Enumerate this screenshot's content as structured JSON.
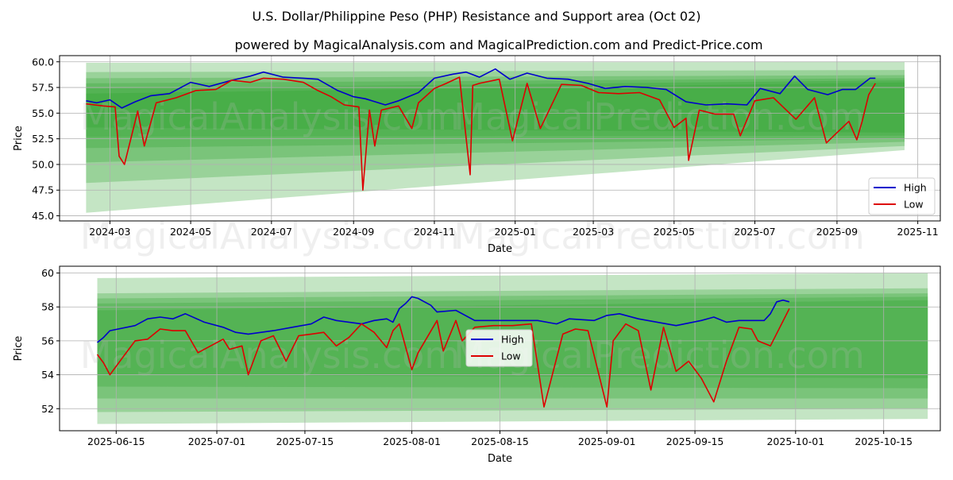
{
  "title": "U.S. Dollar/Philippine Peso (PHP) Resistance and Support area (Oct 02)",
  "subtitle": "powered by MagicalAnalysis.com and MagicalPrediction.com and Predict-Price.com",
  "watermarks": [
    "MagicalAnalysis.com",
    "MagicalPrediction.com"
  ],
  "colors": {
    "high": "#0000cc",
    "low": "#dd0000",
    "band": "#2ca02c"
  },
  "chart_data": [
    {
      "type": "line",
      "panel": "top",
      "xlabel": "Date",
      "ylabel": "Price",
      "xlim": [
        "2024-01-23",
        "2025-11-18"
      ],
      "ylim": [
        44.5,
        60.6
      ],
      "xticks": [
        "2024-03-01",
        "2024-05-01",
        "2024-07-01",
        "2024-09-01",
        "2024-11-01",
        "2025-01-01",
        "2025-03-01",
        "2025-05-01",
        "2025-07-01",
        "2025-09-01",
        "2025-11-01"
      ],
      "xtick_labels": [
        "2024-03",
        "2024-05",
        "2024-07",
        "2024-09",
        "2024-11",
        "2025-01",
        "2025-03",
        "2025-05",
        "2025-07",
        "2025-09",
        "2025-11"
      ],
      "yticks": [
        45.0,
        47.5,
        50.0,
        52.5,
        55.0,
        57.5,
        60.0
      ],
      "ytick_labels": [
        "45.0",
        "47.5",
        "50.0",
        "52.5",
        "55.0",
        "57.5",
        "60.0"
      ],
      "legend": {
        "position": "lower-right",
        "entries": [
          "High",
          "Low"
        ]
      },
      "bands": {
        "x_start": "2024-02-12",
        "x_end": "2025-10-22",
        "upper_start": [
          59.9,
          59.0,
          58.4,
          57.9,
          57.4,
          56.9
        ],
        "upper_end": [
          60.0,
          59.2,
          58.7,
          58.4,
          58.2,
          58.0
        ],
        "lower_start": [
          45.3,
          48.2,
          50.2,
          51.6,
          52.7,
          53.6
        ],
        "lower_end": [
          51.4,
          51.8,
          52.2,
          52.5,
          52.8,
          53.1
        ]
      },
      "series": [
        {
          "name": "High",
          "x": [
            "2024-02-12",
            "2024-02-20",
            "2024-03-01",
            "2024-03-10",
            "2024-03-20",
            "2024-04-01",
            "2024-04-15",
            "2024-05-01",
            "2024-05-15",
            "2024-06-01",
            "2024-06-15",
            "2024-06-25",
            "2024-07-10",
            "2024-07-25",
            "2024-08-05",
            "2024-08-20",
            "2024-09-01",
            "2024-09-10",
            "2024-09-25",
            "2024-10-05",
            "2024-10-20",
            "2024-11-01",
            "2024-11-15",
            "2024-11-25",
            "2024-12-05",
            "2024-12-17",
            "2024-12-28",
            "2025-01-10",
            "2025-01-25",
            "2025-02-10",
            "2025-02-25",
            "2025-03-10",
            "2025-03-25",
            "2025-04-10",
            "2025-04-25",
            "2025-05-10",
            "2025-05-25",
            "2025-06-10",
            "2025-06-25",
            "2025-07-05",
            "2025-07-20",
            "2025-07-31",
            "2025-08-10",
            "2025-08-25",
            "2025-09-05",
            "2025-09-15",
            "2025-09-26",
            "2025-09-30"
          ],
          "values": [
            56.2,
            56.0,
            56.3,
            55.5,
            56.1,
            56.7,
            56.9,
            58.0,
            57.6,
            58.2,
            58.6,
            59.0,
            58.5,
            58.4,
            58.3,
            57.2,
            56.6,
            56.4,
            55.8,
            56.2,
            57.0,
            58.4,
            58.8,
            59.0,
            58.5,
            59.3,
            58.3,
            58.9,
            58.4,
            58.3,
            57.9,
            57.4,
            57.6,
            57.5,
            57.3,
            56.1,
            55.8,
            55.9,
            55.8,
            57.4,
            56.9,
            58.6,
            57.3,
            56.8,
            57.3,
            57.3,
            58.4,
            58.4
          ]
        },
        {
          "name": "Low",
          "x": [
            "2024-02-12",
            "2024-02-25",
            "2024-03-05",
            "2024-03-08",
            "2024-03-12",
            "2024-03-22",
            "2024-03-27",
            "2024-04-05",
            "2024-04-20",
            "2024-05-05",
            "2024-05-20",
            "2024-06-01",
            "2024-06-15",
            "2024-06-25",
            "2024-07-10",
            "2024-07-25",
            "2024-08-05",
            "2024-08-15",
            "2024-08-25",
            "2024-09-05",
            "2024-09-08",
            "2024-09-13",
            "2024-09-17",
            "2024-09-22",
            "2024-10-05",
            "2024-10-15",
            "2024-10-20",
            "2024-11-01",
            "2024-11-10",
            "2024-11-20",
            "2024-11-28",
            "2024-11-30",
            "2024-12-05",
            "2024-12-20",
            "2024-12-30",
            "2025-01-10",
            "2025-01-20",
            "2025-02-05",
            "2025-02-20",
            "2025-03-05",
            "2025-03-20",
            "2025-04-05",
            "2025-04-20",
            "2025-05-01",
            "2025-05-10",
            "2025-05-12",
            "2025-05-20",
            "2025-06-01",
            "2025-06-15",
            "2025-06-20",
            "2025-07-01",
            "2025-07-15",
            "2025-08-01",
            "2025-08-15",
            "2025-08-24",
            "2025-09-01",
            "2025-09-10",
            "2025-09-16",
            "2025-09-20",
            "2025-09-25",
            "2025-09-30"
          ],
          "values": [
            55.9,
            55.7,
            55.6,
            50.8,
            50.0,
            55.2,
            51.8,
            56.0,
            56.5,
            57.2,
            57.3,
            58.2,
            58.0,
            58.4,
            58.3,
            58.0,
            57.2,
            56.6,
            55.8,
            55.6,
            47.5,
            55.3,
            51.8,
            55.3,
            55.7,
            53.5,
            56.0,
            57.4,
            57.9,
            58.5,
            49.0,
            57.7,
            57.9,
            58.3,
            52.3,
            57.9,
            53.5,
            57.8,
            57.7,
            57.0,
            56.9,
            57.0,
            56.3,
            53.6,
            54.5,
            50.4,
            55.3,
            54.9,
            54.9,
            52.8,
            56.2,
            56.5,
            54.4,
            56.5,
            52.1,
            53.1,
            54.2,
            52.4,
            54.2,
            56.8,
            57.9
          ]
        }
      ]
    },
    {
      "type": "line",
      "panel": "bottom",
      "xlabel": "Date",
      "ylabel": "Price",
      "xlim": [
        "2025-06-06",
        "2025-10-24"
      ],
      "ylim": [
        50.7,
        60.4
      ],
      "xticks": [
        "2025-06-15",
        "2025-07-01",
        "2025-07-15",
        "2025-08-01",
        "2025-08-15",
        "2025-09-01",
        "2025-09-15",
        "2025-10-01",
        "2025-10-15"
      ],
      "xtick_labels": [
        "2025-06-15",
        "2025-07-01",
        "2025-07-15",
        "2025-08-01",
        "2025-08-15",
        "2025-09-01",
        "2025-09-15",
        "2025-10-01",
        "2025-10-15"
      ],
      "yticks": [
        52,
        54,
        56,
        58,
        60
      ],
      "ytick_labels": [
        "52",
        "54",
        "56",
        "58",
        "60"
      ],
      "legend": {
        "position": "center",
        "entries": [
          "High",
          "Low"
        ]
      },
      "bands": {
        "x_start": "2025-06-12",
        "x_end": "2025-10-22",
        "upper_start": [
          59.7,
          58.8,
          58.5,
          58.2,
          57.8
        ],
        "upper_end": [
          60.0,
          59.1,
          58.8,
          58.6,
          58.4
        ],
        "lower_start": [
          51.1,
          51.8,
          52.6,
          53.3,
          54.0
        ],
        "lower_end": [
          51.4,
          52.0,
          52.6,
          53.2,
          53.8
        ]
      },
      "series": [
        {
          "name": "High",
          "x": [
            "2025-06-12",
            "2025-06-13",
            "2025-06-14",
            "2025-06-18",
            "2025-06-20",
            "2025-06-22",
            "2025-06-24",
            "2025-06-26",
            "2025-06-29",
            "2025-07-02",
            "2025-07-04",
            "2025-07-06",
            "2025-07-10",
            "2025-07-13",
            "2025-07-16",
            "2025-07-18",
            "2025-07-20",
            "2025-07-24",
            "2025-07-26",
            "2025-07-28",
            "2025-07-29",
            "2025-07-30",
            "2025-07-31",
            "2025-08-01",
            "2025-08-02",
            "2025-08-04",
            "2025-08-05",
            "2025-08-08",
            "2025-08-11",
            "2025-08-14",
            "2025-08-18",
            "2025-08-21",
            "2025-08-24",
            "2025-08-26",
            "2025-08-30",
            "2025-09-01",
            "2025-09-03",
            "2025-09-06",
            "2025-09-09",
            "2025-09-12",
            "2025-09-16",
            "2025-09-18",
            "2025-09-20",
            "2025-09-22",
            "2025-09-24",
            "2025-09-26",
            "2025-09-27",
            "2025-09-28",
            "2025-09-29",
            "2025-09-30"
          ],
          "values": [
            55.9,
            56.2,
            56.6,
            56.9,
            57.3,
            57.4,
            57.3,
            57.6,
            57.1,
            56.8,
            56.5,
            56.4,
            56.6,
            56.8,
            57.0,
            57.4,
            57.2,
            57.0,
            57.2,
            57.3,
            57.1,
            57.9,
            58.2,
            58.6,
            58.5,
            58.1,
            57.7,
            57.8,
            57.2,
            57.2,
            57.2,
            57.2,
            57.0,
            57.3,
            57.2,
            57.5,
            57.6,
            57.3,
            57.1,
            56.9,
            57.2,
            57.4,
            57.1,
            57.2,
            57.2,
            57.2,
            57.6,
            58.3,
            58.4,
            58.3
          ]
        },
        {
          "name": "Low",
          "x": [
            "2025-06-12",
            "2025-06-13",
            "2025-06-14",
            "2025-06-16",
            "2025-06-18",
            "2025-06-20",
            "2025-06-22",
            "2025-06-24",
            "2025-06-26",
            "2025-06-28",
            "2025-07-02",
            "2025-07-03",
            "2025-07-05",
            "2025-07-06",
            "2025-07-08",
            "2025-07-10",
            "2025-07-12",
            "2025-07-14",
            "2025-07-16",
            "2025-07-18",
            "2025-07-20",
            "2025-07-22",
            "2025-07-24",
            "2025-07-26",
            "2025-07-28",
            "2025-07-29",
            "2025-07-30",
            "2025-08-01",
            "2025-08-02",
            "2025-08-05",
            "2025-08-06",
            "2025-08-08",
            "2025-08-09",
            "2025-08-11",
            "2025-08-14",
            "2025-08-17",
            "2025-08-20",
            "2025-08-22",
            "2025-08-25",
            "2025-08-27",
            "2025-08-29",
            "2025-09-01",
            "2025-09-02",
            "2025-09-04",
            "2025-09-06",
            "2025-09-08",
            "2025-09-10",
            "2025-09-12",
            "2025-09-14",
            "2025-09-16",
            "2025-09-18",
            "2025-09-20",
            "2025-09-22",
            "2025-09-24",
            "2025-09-25",
            "2025-09-27",
            "2025-09-30"
          ],
          "values": [
            55.2,
            54.7,
            54.0,
            55.0,
            56.0,
            56.1,
            56.7,
            56.6,
            56.6,
            55.3,
            56.1,
            55.5,
            55.7,
            54.0,
            56.0,
            56.3,
            54.8,
            56.3,
            56.4,
            56.5,
            55.7,
            56.2,
            57.0,
            56.5,
            55.6,
            56.6,
            57.0,
            54.3,
            55.3,
            57.2,
            55.4,
            57.2,
            56.0,
            56.8,
            56.9,
            56.9,
            57.0,
            52.1,
            56.4,
            56.7,
            56.6,
            52.1,
            56.0,
            57.0,
            56.6,
            53.1,
            56.8,
            54.2,
            54.8,
            53.8,
            52.4,
            54.8,
            56.8,
            56.7,
            56.0,
            55.7,
            57.9
          ]
        }
      ]
    }
  ]
}
